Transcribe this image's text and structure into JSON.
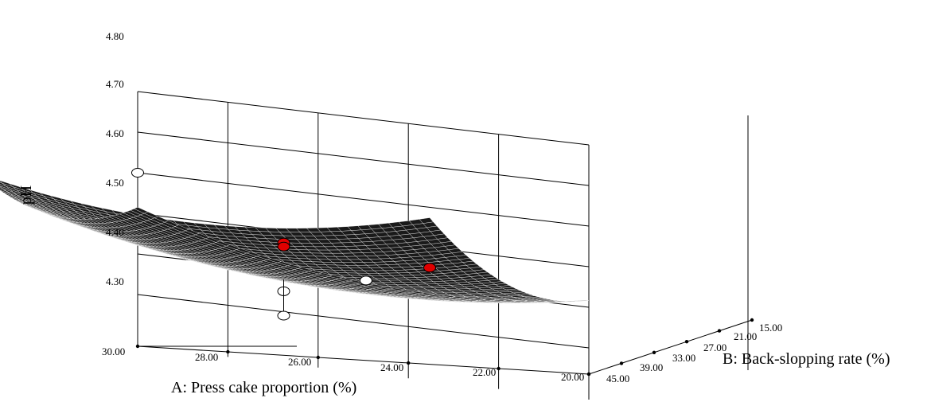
{
  "chart_data": {
    "type": "surface3d",
    "title": "",
    "zlabel": "pH",
    "xlabel": "A: Press cake proportion (%)",
    "ylabel": "B: Back-slopping rate (%)",
    "z_ticks": [
      "4.30",
      "4.40",
      "4.50",
      "4.60",
      "4.70",
      "4.80"
    ],
    "x_ticks": [
      "30.00",
      "28.00",
      "26.00",
      "24.00",
      "22.00",
      "20.00"
    ],
    "y_ticks": [
      "15.00",
      "21.00",
      "27.00",
      "33.00",
      "39.00",
      "45.00"
    ],
    "zlim": [
      4.3,
      4.8
    ],
    "xlim": [
      20,
      30
    ],
    "ylim": [
      15,
      45
    ],
    "surface_color": "#1a1a1a",
    "design_points": [
      {
        "x": 30,
        "y": 15,
        "z": 4.6,
        "color": "#ffffff",
        "above_surface": false
      },
      {
        "x": 25,
        "y": 30,
        "z": 4.53,
        "color": "#e00000",
        "above_surface": true
      },
      {
        "x": 25,
        "y": 30,
        "z": 4.52,
        "color": "#e00000",
        "above_surface": true
      },
      {
        "x": 25,
        "y": 30,
        "z": 4.41,
        "color": "#ffffff",
        "above_surface": false
      },
      {
        "x": 25,
        "y": 30,
        "z": 4.35,
        "color": "#ffffff",
        "above_surface": false
      },
      {
        "x": 22,
        "y": 40,
        "z": 4.5,
        "color": "#ffffff",
        "above_surface": true
      },
      {
        "x": 20,
        "y": 45,
        "z": 4.57,
        "color": "#e00000",
        "above_surface": true
      }
    ]
  }
}
